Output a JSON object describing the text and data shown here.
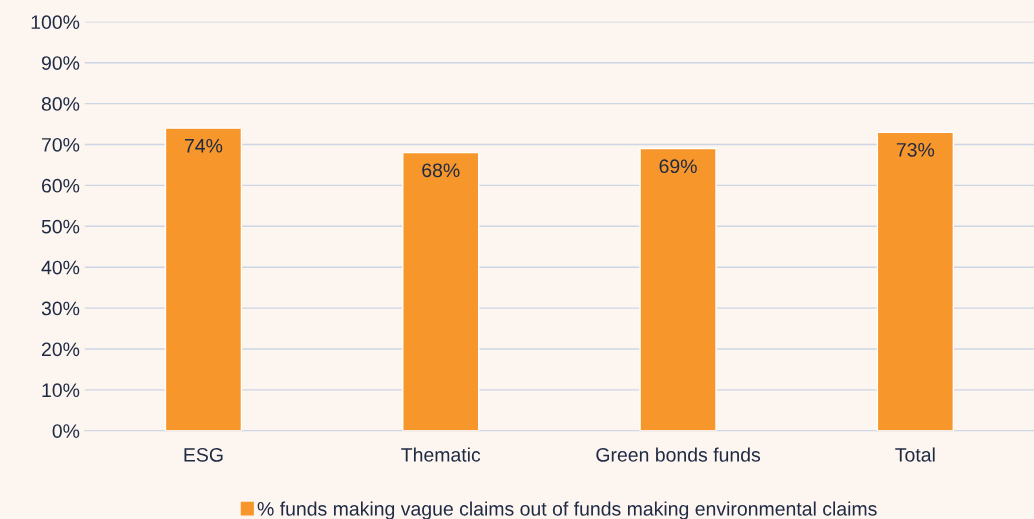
{
  "chart_data": {
    "type": "bar",
    "categories": [
      "ESG",
      "Thematic",
      "Green bonds funds",
      "Total"
    ],
    "series": [
      {
        "name": "% funds making vague claims out of funds making environmental claims",
        "color": "#f7962a",
        "values": [
          74,
          68,
          69,
          73
        ]
      }
    ],
    "value_labels": [
      "74%",
      "68%",
      "69%",
      "73%"
    ],
    "ylim": [
      0,
      100
    ],
    "yticks": [
      {
        "value": 0,
        "label": "0%"
      },
      {
        "value": 10,
        "label": "10%"
      },
      {
        "value": 20,
        "label": "20%"
      },
      {
        "value": 30,
        "label": "30%"
      },
      {
        "value": 40,
        "label": "40%"
      },
      {
        "value": 50,
        "label": "50%"
      },
      {
        "value": 60,
        "label": "60%"
      },
      {
        "value": 70,
        "label": "70%"
      },
      {
        "value": 80,
        "label": "80%"
      },
      {
        "value": 90,
        "label": "90%"
      },
      {
        "value": 100,
        "label": "100%"
      }
    ],
    "grid": "y",
    "legend": "bottom"
  }
}
